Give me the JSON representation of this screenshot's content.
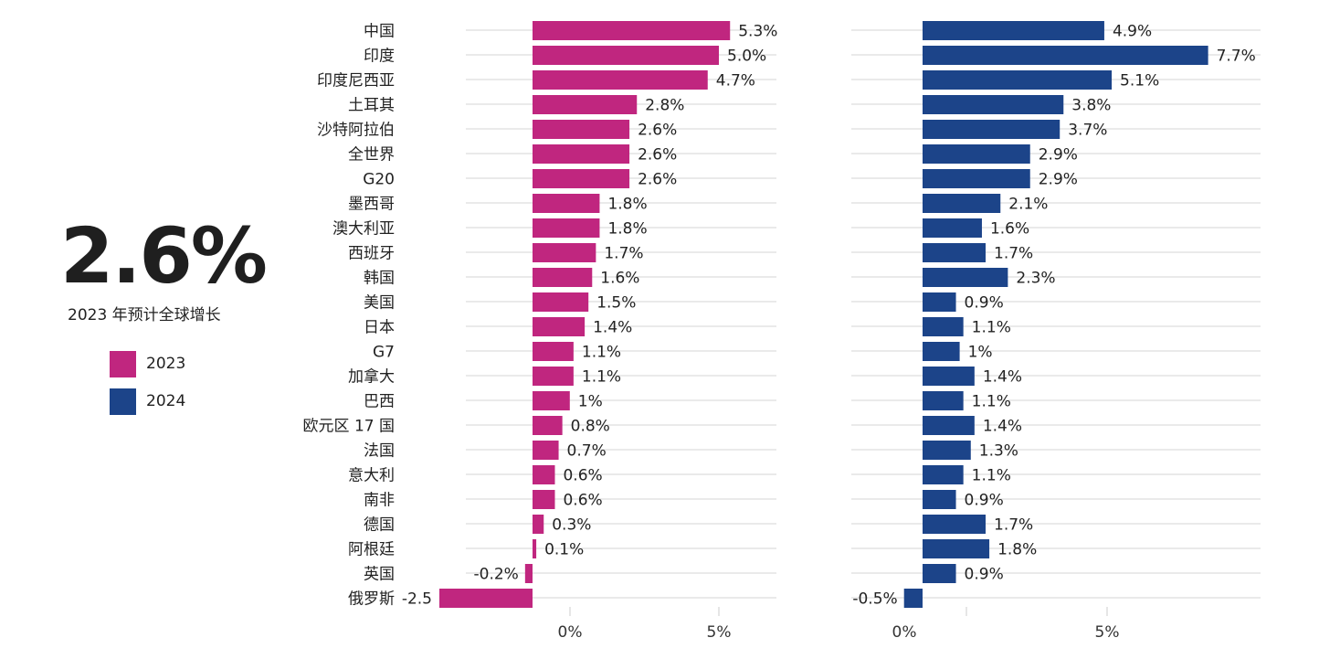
{
  "headline": {
    "value": "2.6%",
    "subtitle": "2023 年预计全球增长"
  },
  "legend": [
    {
      "label": "2023",
      "color": "#c0267f"
    },
    {
      "label": "2024",
      "color": "#1c4489"
    }
  ],
  "chart_data": {
    "type": "bar",
    "orientation": "horizontal",
    "grid": true,
    "legend_position": "left",
    "categories": [
      "中国",
      "印度",
      "印度尼西亚",
      "土耳其",
      "沙特阿拉伯",
      "全世界",
      "G20",
      "墨西哥",
      "澳大利亚",
      "西班牙",
      "韩国",
      "美国",
      "日本",
      "G7",
      "加拿大",
      "巴西",
      "欧元区 17 国",
      "法国",
      "意大利",
      "南非",
      "德国",
      "阿根廷",
      "英国",
      "俄罗斯"
    ],
    "series": [
      {
        "name": "2023",
        "color": "#c0267f",
        "values": [
          5.3,
          5.0,
          4.7,
          2.8,
          2.6,
          2.6,
          2.6,
          1.8,
          1.8,
          1.7,
          1.6,
          1.5,
          1.4,
          1.1,
          1.1,
          1,
          0.8,
          0.7,
          0.6,
          0.6,
          0.3,
          0.1,
          -0.2,
          -2.5
        ],
        "labels": [
          "5.3%",
          "5.0%",
          "4.7%",
          "2.8%",
          "2.6%",
          "2.6%",
          "2.6%",
          "1.8%",
          "1.8%",
          "1.7%",
          "1.6%",
          "1.5%",
          "1.4%",
          "1.1%",
          "1.1%",
          "1%",
          "0.8%",
          "0.7%",
          "0.6%",
          "0.6%",
          "0.3%",
          "0.1%",
          "-0.2%",
          "-2.5"
        ],
        "ticks": [
          "0%",
          "5%"
        ]
      },
      {
        "name": "2024",
        "color": "#1c4489",
        "values": [
          4.9,
          7.7,
          5.1,
          3.8,
          3.7,
          2.9,
          2.9,
          2.1,
          1.6,
          1.7,
          2.3,
          0.9,
          1.1,
          1,
          1.4,
          1.1,
          1.4,
          1.3,
          1.1,
          0.9,
          1.7,
          1.8,
          0.9,
          -0.5
        ],
        "labels": [
          "4.9%",
          "7.7%",
          "5.1%",
          "3.8%",
          "3.7%",
          "2.9%",
          "2.9%",
          "2.1%",
          "1.6%",
          "1.7%",
          "2.3%",
          "0.9%",
          "1.1%",
          "1%",
          "1.4%",
          "1.1%",
          "1.4%",
          "1.3%",
          "1.1%",
          "0.9%",
          "1.7%",
          "1.8%",
          "0.9%",
          "-0.5%"
        ],
        "ticks": [
          "0%",
          "5%"
        ]
      }
    ]
  }
}
